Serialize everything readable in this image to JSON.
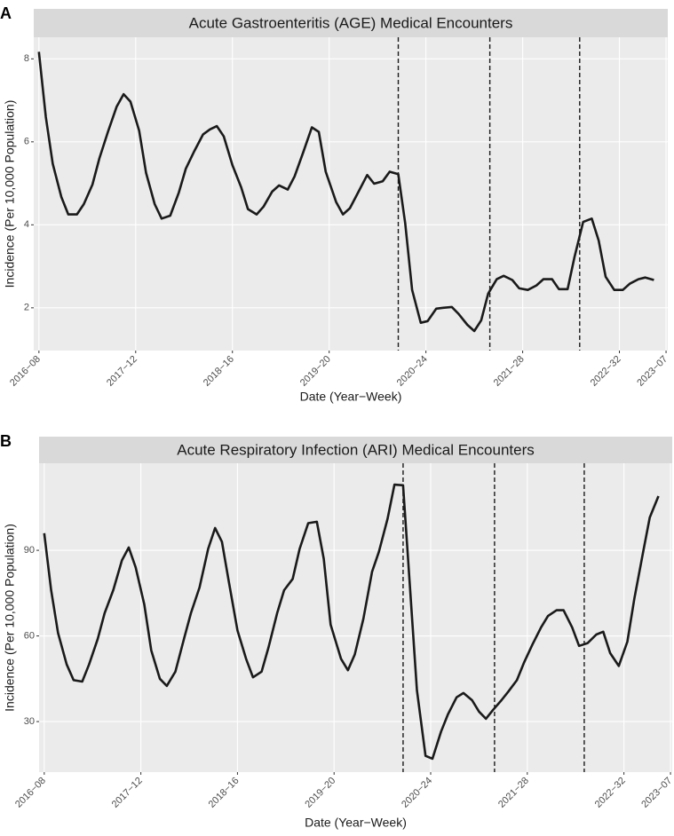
{
  "chart_data": [
    {
      "type": "line",
      "panel_label": "A",
      "title": "Acute Gastroenteritis (AGE) Medical Encounters",
      "xlabel": "Date (Year−Week)",
      "ylabel": "Incidence (Per 10,000 Population)",
      "x": [
        0,
        4,
        8,
        13,
        17,
        22,
        26,
        31,
        35,
        40,
        45,
        49,
        53,
        58,
        62,
        67,
        71,
        76,
        81,
        85,
        90,
        95,
        99,
        103,
        107,
        112,
        117,
        121,
        126,
        130,
        135,
        139,
        144,
        148,
        153,
        158,
        162,
        166,
        172,
        176,
        180,
        185,
        190,
        194,
        199,
        203,
        208,
        212,
        216,
        221,
        225,
        230,
        234,
        239,
        243,
        248,
        252,
        256,
        260,
        265,
        269,
        274,
        278,
        283,
        288,
        292,
        297,
        301,
        306,
        310,
        315,
        320,
        324,
        328,
        333,
        338,
        342,
        347,
        351,
        356
      ],
      "values": [
        8.17,
        6.6,
        5.47,
        4.67,
        4.25,
        4.25,
        4.5,
        4.97,
        5.6,
        6.25,
        6.85,
        7.15,
        6.97,
        6.27,
        5.25,
        4.5,
        4.15,
        4.22,
        4.78,
        5.35,
        5.78,
        6.18,
        6.3,
        6.38,
        6.13,
        5.44,
        4.91,
        4.38,
        4.25,
        4.44,
        4.8,
        4.95,
        4.85,
        5.17,
        5.75,
        6.35,
        6.24,
        5.28,
        4.55,
        4.25,
        4.4,
        4.8,
        5.2,
        4.99,
        5.05,
        5.28,
        5.22,
        4.04,
        2.43,
        1.64,
        1.68,
        1.98,
        2.0,
        2.02,
        1.85,
        1.59,
        1.44,
        1.7,
        2.34,
        2.69,
        2.77,
        2.67,
        2.47,
        2.43,
        2.54,
        2.69,
        2.69,
        2.45,
        2.45,
        3.22,
        4.07,
        4.15,
        3.62,
        2.75,
        2.43,
        2.43,
        2.58,
        2.69,
        2.73,
        2.67
      ],
      "color": "#1a1a1a",
      "xlim": [
        -3,
        364
      ],
      "ylim": [
        0.97,
        8.52
      ],
      "xticks": [
        {
          "value": 0,
          "label": "2016−08"
        },
        {
          "value": 56,
          "label": "2017−12"
        },
        {
          "value": 112,
          "label": "2018−16"
        },
        {
          "value": 168,
          "label": "2019−20"
        },
        {
          "value": 224,
          "label": "2020−24"
        },
        {
          "value": 280,
          "label": "2021−28"
        },
        {
          "value": 336,
          "label": "2022−32"
        },
        {
          "value": 363,
          "label": "2023−07"
        }
      ],
      "yticks": [
        2,
        4,
        6,
        8
      ],
      "vlines": [
        208,
        261,
        313
      ],
      "grid": true
    },
    {
      "type": "line",
      "panel_label": "B",
      "title": "Acute Respiratory Infection (ARI) Medical Encounters",
      "xlabel": "Date (Year−Week)",
      "ylabel": "Incidence (Per 10,000 Population)",
      "x": [
        0,
        4,
        8,
        13,
        17,
        22,
        26,
        31,
        35,
        40,
        45,
        49,
        53,
        58,
        62,
        67,
        71,
        76,
        81,
        85,
        90,
        95,
        99,
        103,
        107,
        112,
        117,
        121,
        126,
        130,
        135,
        139,
        144,
        148,
        153,
        158,
        162,
        166,
        172,
        176,
        180,
        185,
        190,
        194,
        199,
        203,
        208,
        212,
        216,
        221,
        225,
        230,
        234,
        239,
        243,
        248,
        252,
        256,
        260,
        265,
        269,
        274,
        278,
        283,
        288,
        292,
        297,
        301,
        306,
        310,
        315,
        320,
        324,
        328,
        333,
        338,
        342,
        347,
        351,
        356
      ],
      "values": [
        96,
        76,
        61,
        50,
        44.5,
        44,
        50,
        59,
        68,
        76,
        86.5,
        91,
        84,
        71,
        55,
        45,
        42.5,
        47.5,
        59,
        68,
        77,
        90.5,
        97.8,
        93,
        79,
        62,
        52,
        45.5,
        47.5,
        56,
        68,
        76,
        80,
        90.5,
        99.5,
        100,
        87,
        64,
        52,
        48,
        53.5,
        66,
        82.5,
        89.5,
        101,
        113,
        112.8,
        77,
        41,
        18,
        17,
        26.5,
        32.5,
        38.5,
        40,
        37.5,
        33.5,
        31,
        34,
        37.5,
        40.5,
        44.5,
        50.5,
        57,
        63,
        67,
        69,
        69,
        63,
        56.5,
        57.5,
        60.5,
        61.5,
        54,
        49.5,
        58,
        73,
        89,
        101.5,
        109
      ],
      "color": "#1a1a1a",
      "xlim": [
        -3,
        364
      ],
      "ylim": [
        12.3,
        120.5
      ],
      "xticks": [
        {
          "value": 0,
          "label": "2016−08"
        },
        {
          "value": 56,
          "label": "2017−12"
        },
        {
          "value": 112,
          "label": "2018−16"
        },
        {
          "value": 168,
          "label": "2019−20"
        },
        {
          "value": 224,
          "label": "2020−24"
        },
        {
          "value": 280,
          "label": "2021−28"
        },
        {
          "value": 336,
          "label": "2022−32"
        },
        {
          "value": 363,
          "label": "2023−07"
        }
      ],
      "yticks": [
        30,
        60,
        90
      ],
      "vlines": [
        208,
        261,
        313
      ],
      "grid": true
    }
  ]
}
